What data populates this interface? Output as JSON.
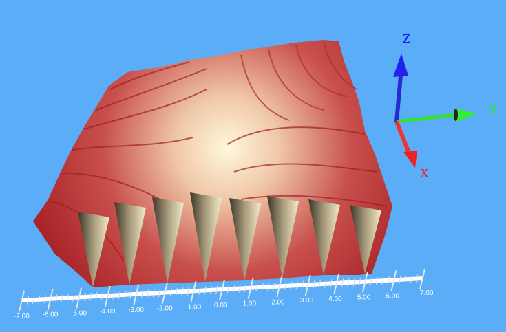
{
  "chart_data": {
    "type": "surface",
    "title": "",
    "background_color": "#5aadf6",
    "surface_colors": {
      "low": "#f5efc8",
      "high": "#b8282c",
      "shadow": "#3a3428"
    },
    "ruler": {
      "range": [
        -7,
        7
      ],
      "major_step": 1,
      "tick_labels": [
        "-7.00",
        "-6.00",
        "-5.00",
        "-4.00",
        "-3.00",
        "-2.00",
        "-1.00",
        "0.00",
        "1.00",
        "2.00",
        "3.00",
        "4.00",
        "5.00",
        "6.00",
        "7.00"
      ]
    },
    "orientation_axes": [
      {
        "label": "z",
        "color": "#1a1aff"
      },
      {
        "label": "y",
        "color": "#22ee22"
      },
      {
        "label": "x",
        "color": "#ee2222"
      }
    ]
  }
}
